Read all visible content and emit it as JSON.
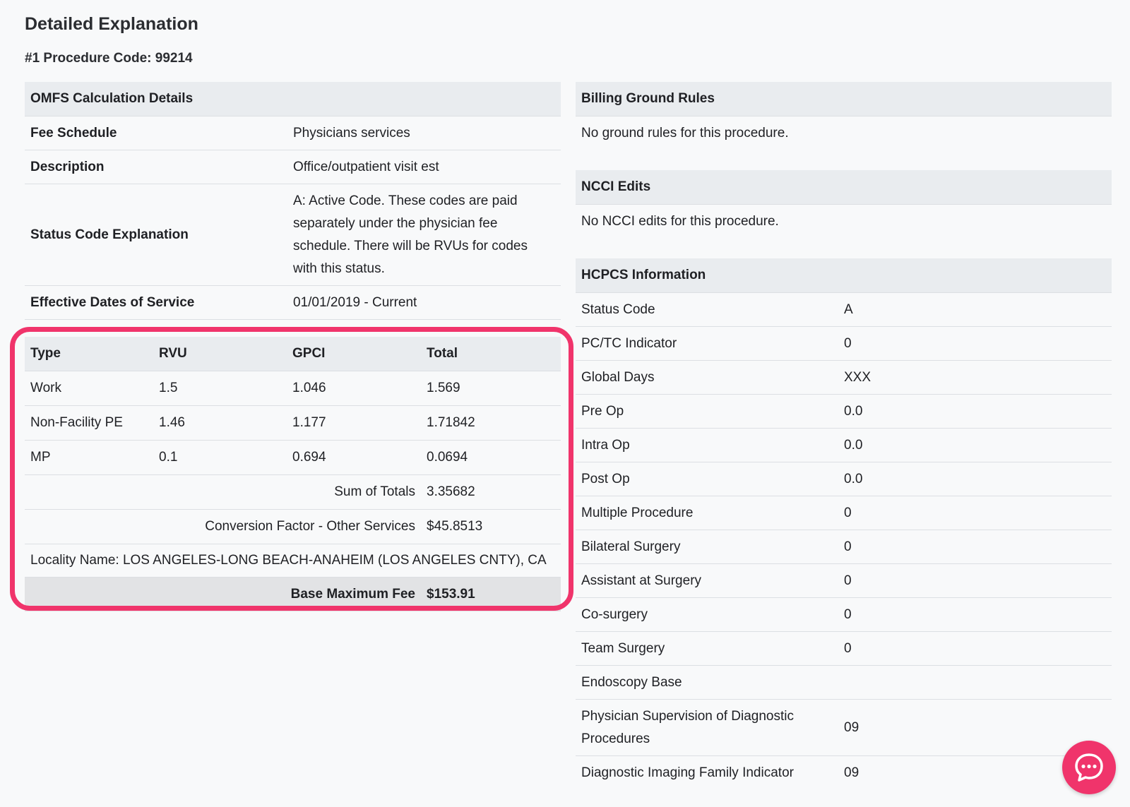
{
  "page": {
    "title": "Detailed Explanation",
    "procedure_heading": "#1 Procedure Code: 99214"
  },
  "omfs": {
    "header": "OMFS Calculation Details",
    "rows": [
      {
        "label": "Fee Schedule",
        "value": "Physicians services"
      },
      {
        "label": "Description",
        "value": "Office/outpatient visit est"
      },
      {
        "label": "Status Code Explanation",
        "value": "A: Active Code. These codes are paid separately under the physician fee schedule. There will be RVUs for codes with this status."
      },
      {
        "label": "Effective Dates of Service",
        "value": "01/01/2019 - Current"
      }
    ]
  },
  "rvu_table": {
    "headers": [
      "Type",
      "RVU",
      "GPCI",
      "Total"
    ],
    "rows": [
      [
        "Work",
        "1.5",
        "1.046",
        "1.569"
      ],
      [
        "Non-Facility PE",
        "1.46",
        "1.177",
        "1.71842"
      ],
      [
        "MP",
        "0.1",
        "0.694",
        "0.0694"
      ]
    ],
    "sum_label": "Sum of Totals",
    "sum_value": "3.35682",
    "conversion_label": "Conversion Factor - Other Services",
    "conversion_value": "$45.8513",
    "locality": "Locality Name: LOS ANGELES-LONG BEACH-ANAHEIM (LOS ANGELES CNTY), CA"
  },
  "base_fee": {
    "label": "Base Maximum Fee",
    "value": "$153.91"
  },
  "billing": {
    "header": "Billing Ground Rules",
    "text": "No ground rules for this procedure."
  },
  "ncci": {
    "header": "NCCI Edits",
    "text": "No NCCI edits for this procedure."
  },
  "hcpcs": {
    "header": "HCPCS Information",
    "rows": [
      {
        "label": "Status Code",
        "value": "A"
      },
      {
        "label": "PC/TC Indicator",
        "value": "0"
      },
      {
        "label": "Global Days",
        "value": "XXX"
      },
      {
        "label": "Pre Op",
        "value": "0.0"
      },
      {
        "label": "Intra Op",
        "value": "0.0"
      },
      {
        "label": "Post Op",
        "value": "0.0"
      },
      {
        "label": "Multiple Procedure",
        "value": "0"
      },
      {
        "label": "Bilateral Surgery",
        "value": "0"
      },
      {
        "label": "Assistant at Surgery",
        "value": "0"
      },
      {
        "label": "Co-surgery",
        "value": "0"
      },
      {
        "label": "Team Surgery",
        "value": "0"
      },
      {
        "label": "Endoscopy Base",
        "value": ""
      },
      {
        "label": "Physician Supervision of Diagnostic Procedures",
        "value": "09"
      },
      {
        "label": "Diagnostic Imaging Family Indicator",
        "value": "09"
      }
    ]
  },
  "chat": {
    "icon": "chat-bubble-icon",
    "color": "#f0346b"
  },
  "colors": {
    "highlight": "#f0346b",
    "header_bg": "#e9ecef"
  }
}
